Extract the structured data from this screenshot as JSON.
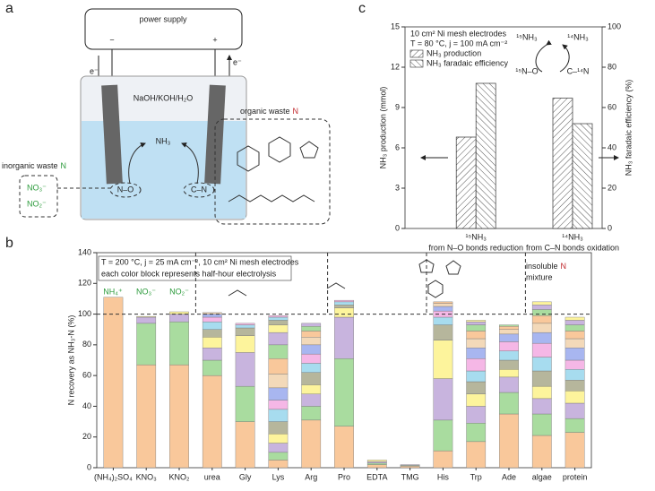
{
  "diagram": {
    "panel_label": "a",
    "power_supply": "power supply",
    "minus": "−",
    "plus": "+",
    "electron_left": "e⁻",
    "electron_right": "e⁻",
    "electrolyte": "NaOH/KOH/H₂O",
    "product": "NH₃",
    "inorganic_label": "inorganic waste",
    "inorganic_n": "N",
    "nitrate": "NO₃⁻",
    "nitrite": "NO₂⁻",
    "bond_no": "N–O",
    "bond_cn": "C–N",
    "organic_label": "organic waste",
    "organic_n": "N"
  },
  "chart_data": [
    {
      "type": "stacked_bar",
      "panel_label": "b",
      "ylabel": "N recovery as NH₃-N (%)",
      "categories": [
        "(NH₄)₂SO₄",
        "KNO₃",
        "KNO₂",
        "urea",
        "Gly",
        "Lys",
        "Arg",
        "Pro",
        "EDTA",
        "TMG",
        "His",
        "Trp",
        "Ade",
        "algae",
        "protein"
      ],
      "ylim": [
        0,
        140
      ],
      "yticks": [
        0,
        20,
        40,
        60,
        80,
        100,
        120,
        140
      ],
      "ref_line": 100,
      "note_lines": [
        "T = 200 °C, j = 25 mA cm⁻², 10 cm² Ni mesh electrodes",
        "each color block represents half-hour electrolysis"
      ],
      "group_labels": [
        "NH₄⁺",
        "NO₃⁻",
        "NO₂⁻"
      ],
      "insoluble": "insoluble",
      "insoluble_n": "N",
      "mixture": "mixture",
      "series": [
        {
          "color": "#f9c89b",
          "values": [
            111,
            67,
            67,
            60,
            30,
            5,
            31,
            27,
            2,
            1,
            11,
            17,
            35,
            21,
            23
          ]
        },
        {
          "color": "#a9dc9f",
          "values": [
            null,
            27,
            28,
            10,
            23,
            5,
            9,
            44,
            1,
            0.5,
            20,
            12,
            14,
            14,
            9
          ]
        },
        {
          "color": "#c8b4de",
          "values": [
            null,
            4,
            5,
            8,
            22,
            6,
            8,
            27,
            1,
            0.5,
            27,
            11,
            10,
            10,
            10
          ]
        },
        {
          "color": "#fdf49c",
          "values": [
            null,
            0.5,
            1.5,
            7,
            11,
            6,
            6,
            6,
            1,
            null,
            25,
            8,
            5,
            8,
            8
          ]
        },
        {
          "color": "#b6b69c",
          "values": [
            null,
            null,
            null,
            5,
            5,
            8,
            8,
            2,
            null,
            null,
            10,
            8,
            6,
            10,
            7
          ]
        },
        {
          "color": "#a7dcef",
          "values": [
            null,
            null,
            null,
            5,
            2,
            8,
            6,
            2,
            null,
            null,
            5,
            7,
            6,
            9,
            7
          ]
        },
        {
          "color": "#f5b7e6",
          "values": [
            null,
            null,
            null,
            3,
            1,
            6,
            6,
            1,
            null,
            null,
            4,
            8,
            6,
            9,
            6
          ]
        },
        {
          "color": "#a8b6f0",
          "values": [
            null,
            null,
            null,
            2,
            null,
            8,
            6,
            null,
            null,
            null,
            3,
            7,
            5,
            7,
            8
          ]
        },
        {
          "color": "#f3d9b9",
          "values": [
            null,
            null,
            null,
            1,
            null,
            9,
            5,
            null,
            null,
            null,
            2,
            6,
            3,
            6,
            6
          ]
        },
        {
          "color": "#f9c89b",
          "values": [
            null,
            null,
            null,
            null,
            null,
            10,
            4,
            null,
            null,
            null,
            1,
            5,
            2,
            5,
            5
          ]
        },
        {
          "color": "#a9dc9f",
          "values": [
            null,
            null,
            null,
            null,
            null,
            9,
            3,
            null,
            null,
            null,
            null,
            4,
            1,
            4,
            4
          ]
        },
        {
          "color": "#c8b4de",
          "values": [
            null,
            null,
            null,
            null,
            null,
            8,
            2,
            null,
            null,
            null,
            null,
            2,
            null,
            3,
            3
          ]
        },
        {
          "color": "#fdf49c",
          "values": [
            null,
            null,
            null,
            null,
            null,
            5,
            null,
            null,
            null,
            null,
            null,
            1,
            null,
            2,
            2
          ]
        },
        {
          "color": "#b6b69c",
          "values": [
            null,
            null,
            null,
            null,
            null,
            3,
            null,
            null,
            null,
            null,
            null,
            null,
            null,
            null,
            null
          ]
        },
        {
          "color": "#a7dcef",
          "values": [
            null,
            null,
            null,
            null,
            null,
            2,
            null,
            null,
            null,
            null,
            null,
            null,
            null,
            null,
            null
          ]
        },
        {
          "color": "#f5b7e6",
          "values": [
            null,
            null,
            null,
            null,
            null,
            1,
            null,
            null,
            null,
            null,
            null,
            null,
            null,
            null,
            null
          ]
        }
      ]
    },
    {
      "type": "bar",
      "panel_label": "c",
      "ylabel": "NH₃ production (mmol)",
      "y2label": "NH₃ faradaic efficiency (%)",
      "categories": [
        "¹⁵NH₃",
        "¹⁴NH₃"
      ],
      "sublabels": [
        "from N–O bonds reduction",
        "from C–N bonds oxidation"
      ],
      "ylim": [
        0,
        15
      ],
      "yticks": [
        0,
        3,
        6,
        9,
        12,
        15
      ],
      "y2lim": [
        0,
        100
      ],
      "y2ticks": [
        0,
        20,
        40,
        60,
        80,
        100
      ],
      "note_lines": [
        "10 cm² Ni mesh electrodes",
        "T = 80 °C, j = 100 mA cm⁻²"
      ],
      "inset": [
        "¹⁵NH₃",
        "¹⁴NH₃",
        "¹⁵N–O",
        "C–¹⁴N"
      ],
      "series": [
        {
          "name": "NH₃ production",
          "color": "#555555",
          "hatch": "forward",
          "values": [
            6.8,
            9.7
          ]
        },
        {
          "name": "NH₃ faradaic efficiency",
          "color": "#555555",
          "hatch": "backward",
          "axis": "y2",
          "values": [
            72,
            52
          ]
        }
      ]
    }
  ]
}
